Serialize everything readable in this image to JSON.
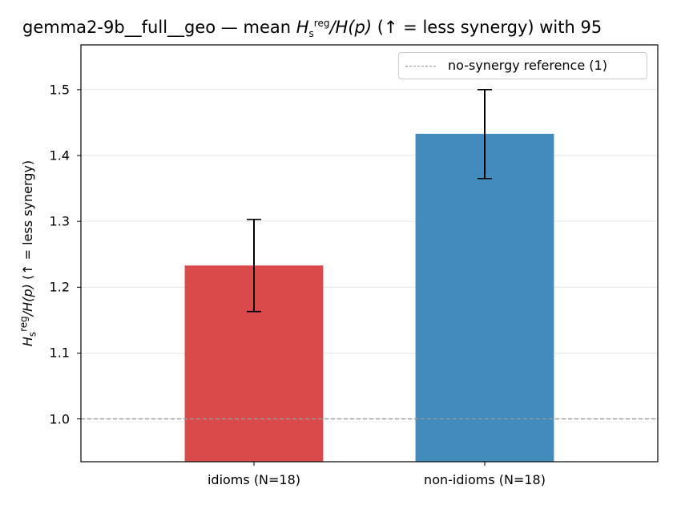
{
  "title": {
    "prefix": "gemma2-9b__full__geo — mean ",
    "h": "H",
    "sub": "s",
    "sup": "reg",
    "middle": "/H(p)",
    "suffix": "  (↑ = less synergy) with 95"
  },
  "ylabel": {
    "h": "H",
    "sub": "s",
    "sup": "reg",
    "middle": "/H(p)",
    "suffix": "  (↑ = less synergy)"
  },
  "legend": {
    "label": "no-synergy reference (1)"
  },
  "chart_data": {
    "type": "bar",
    "categories": [
      "idioms (N=18)",
      "non-idioms (N=18)"
    ],
    "values": [
      1.233,
      1.433
    ],
    "error_low": [
      1.163,
      1.365
    ],
    "error_high": [
      1.303,
      1.5
    ],
    "colors": [
      "#db4a4a",
      "#428bbd"
    ],
    "ylim": [
      0.935,
      1.568
    ],
    "yticks": [
      "1.0",
      "1.1",
      "1.2",
      "1.3",
      "1.4",
      "1.5"
    ],
    "ytick_values": [
      1.0,
      1.1,
      1.2,
      1.3,
      1.4,
      1.5
    ],
    "reference_line": 1.0,
    "grid": "y",
    "legend_position": "top-right"
  }
}
